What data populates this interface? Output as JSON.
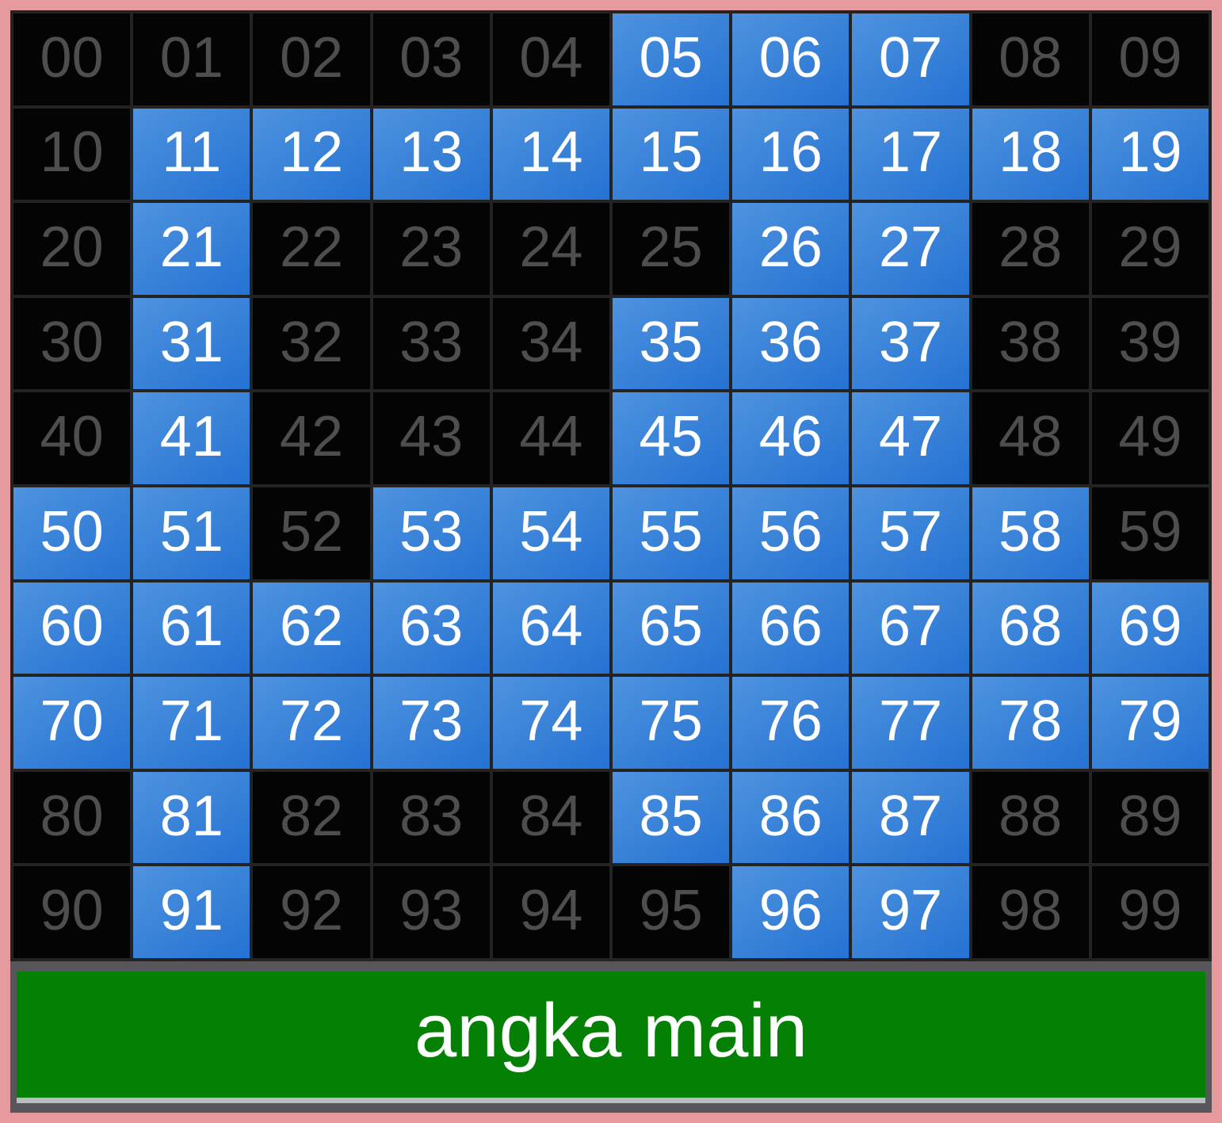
{
  "banner": {
    "label": "angka main",
    "background_color": "#048004",
    "text_color": "#ffffff",
    "underline_color": "#babbbe",
    "band_color": "#57575b"
  },
  "colors": {
    "frame_pink": "#e69a9e",
    "grid_gap": "#232323",
    "cell_off_bg": "#040404",
    "cell_off_text": "#4e4e4e",
    "cell_on_gradient_top": "#4f93e0",
    "cell_on_gradient_bottom": "#2572d3",
    "cell_on_text": "#ffffff"
  },
  "grid": {
    "rows": 10,
    "cols": 10,
    "cells": [
      {
        "v": "00",
        "on": false
      },
      {
        "v": "01",
        "on": false
      },
      {
        "v": "02",
        "on": false
      },
      {
        "v": "03",
        "on": false
      },
      {
        "v": "04",
        "on": false
      },
      {
        "v": "05",
        "on": true
      },
      {
        "v": "06",
        "on": true
      },
      {
        "v": "07",
        "on": true
      },
      {
        "v": "08",
        "on": false
      },
      {
        "v": "09",
        "on": false
      },
      {
        "v": "10",
        "on": false
      },
      {
        "v": "11",
        "on": true
      },
      {
        "v": "12",
        "on": true
      },
      {
        "v": "13",
        "on": true
      },
      {
        "v": "14",
        "on": true
      },
      {
        "v": "15",
        "on": true
      },
      {
        "v": "16",
        "on": true
      },
      {
        "v": "17",
        "on": true
      },
      {
        "v": "18",
        "on": true
      },
      {
        "v": "19",
        "on": true
      },
      {
        "v": "20",
        "on": false
      },
      {
        "v": "21",
        "on": true
      },
      {
        "v": "22",
        "on": false
      },
      {
        "v": "23",
        "on": false
      },
      {
        "v": "24",
        "on": false
      },
      {
        "v": "25",
        "on": false
      },
      {
        "v": "26",
        "on": true
      },
      {
        "v": "27",
        "on": true
      },
      {
        "v": "28",
        "on": false
      },
      {
        "v": "29",
        "on": false
      },
      {
        "v": "30",
        "on": false
      },
      {
        "v": "31",
        "on": true
      },
      {
        "v": "32",
        "on": false
      },
      {
        "v": "33",
        "on": false
      },
      {
        "v": "34",
        "on": false
      },
      {
        "v": "35",
        "on": true
      },
      {
        "v": "36",
        "on": true
      },
      {
        "v": "37",
        "on": true
      },
      {
        "v": "38",
        "on": false
      },
      {
        "v": "39",
        "on": false
      },
      {
        "v": "40",
        "on": false
      },
      {
        "v": "41",
        "on": true
      },
      {
        "v": "42",
        "on": false
      },
      {
        "v": "43",
        "on": false
      },
      {
        "v": "44",
        "on": false
      },
      {
        "v": "45",
        "on": true
      },
      {
        "v": "46",
        "on": true
      },
      {
        "v": "47",
        "on": true
      },
      {
        "v": "48",
        "on": false
      },
      {
        "v": "49",
        "on": false
      },
      {
        "v": "50",
        "on": true
      },
      {
        "v": "51",
        "on": true
      },
      {
        "v": "52",
        "on": false
      },
      {
        "v": "53",
        "on": true
      },
      {
        "v": "54",
        "on": true
      },
      {
        "v": "55",
        "on": true
      },
      {
        "v": "56",
        "on": true
      },
      {
        "v": "57",
        "on": true
      },
      {
        "v": "58",
        "on": true
      },
      {
        "v": "59",
        "on": false
      },
      {
        "v": "60",
        "on": true
      },
      {
        "v": "61",
        "on": true
      },
      {
        "v": "62",
        "on": true
      },
      {
        "v": "63",
        "on": true
      },
      {
        "v": "64",
        "on": true
      },
      {
        "v": "65",
        "on": true
      },
      {
        "v": "66",
        "on": true
      },
      {
        "v": "67",
        "on": true
      },
      {
        "v": "68",
        "on": true
      },
      {
        "v": "69",
        "on": true
      },
      {
        "v": "70",
        "on": true
      },
      {
        "v": "71",
        "on": true
      },
      {
        "v": "72",
        "on": true
      },
      {
        "v": "73",
        "on": true
      },
      {
        "v": "74",
        "on": true
      },
      {
        "v": "75",
        "on": true
      },
      {
        "v": "76",
        "on": true
      },
      {
        "v": "77",
        "on": true
      },
      {
        "v": "78",
        "on": true
      },
      {
        "v": "79",
        "on": true
      },
      {
        "v": "80",
        "on": false
      },
      {
        "v": "81",
        "on": true
      },
      {
        "v": "82",
        "on": false
      },
      {
        "v": "83",
        "on": false
      },
      {
        "v": "84",
        "on": false
      },
      {
        "v": "85",
        "on": true
      },
      {
        "v": "86",
        "on": true
      },
      {
        "v": "87",
        "on": true
      },
      {
        "v": "88",
        "on": false
      },
      {
        "v": "89",
        "on": false
      },
      {
        "v": "90",
        "on": false
      },
      {
        "v": "91",
        "on": true
      },
      {
        "v": "92",
        "on": false
      },
      {
        "v": "93",
        "on": false
      },
      {
        "v": "94",
        "on": false
      },
      {
        "v": "95",
        "on": false
      },
      {
        "v": "96",
        "on": true
      },
      {
        "v": "97",
        "on": true
      },
      {
        "v": "98",
        "on": false
      },
      {
        "v": "99",
        "on": false
      }
    ]
  }
}
